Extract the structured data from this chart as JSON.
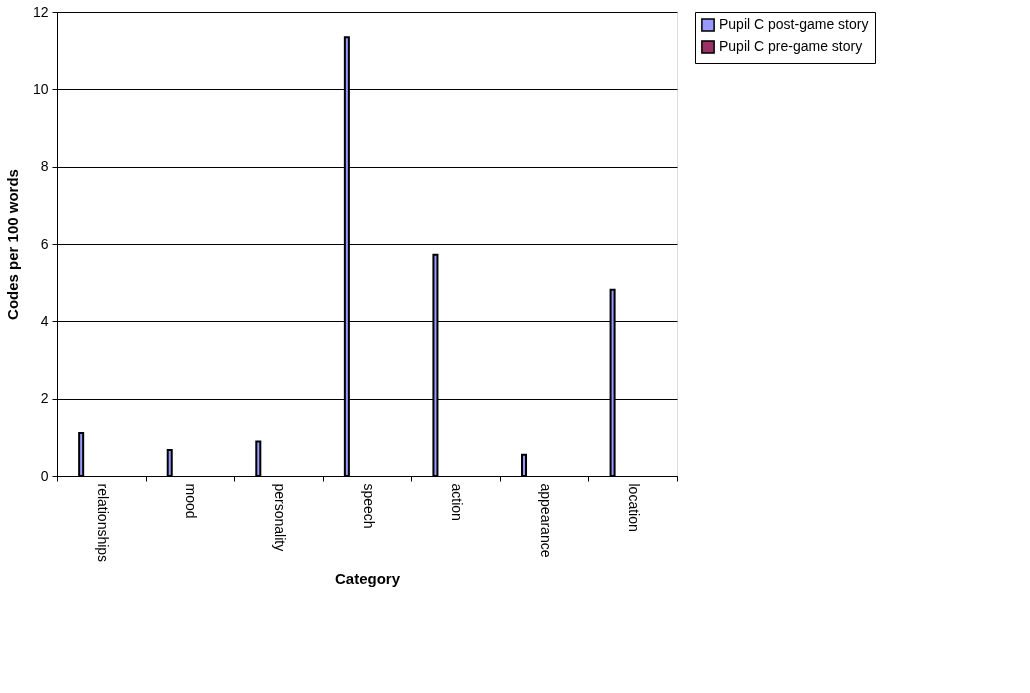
{
  "chart_data": {
    "type": "bar",
    "xlabel": "Category",
    "ylabel": "Codes per 100 words",
    "categories": [
      "relationships",
      "mood",
      "personality",
      "speech",
      "action",
      "appearance",
      "location"
    ],
    "series": [
      {
        "name": "Pupil C post-game story",
        "color": "#9999ff",
        "values": [
          1.11,
          0.67,
          0.89,
          11.35,
          5.72,
          0.55,
          4.82
        ]
      },
      {
        "name": "Pupil C pre-game story",
        "color": "#993366",
        "values": [
          null,
          null,
          null,
          null,
          null,
          null,
          null
        ]
      }
    ],
    "ylim": [
      0,
      12
    ],
    "yticks": [
      0,
      2,
      4,
      6,
      8,
      10,
      12
    ],
    "grid": "y",
    "legend": "right"
  }
}
